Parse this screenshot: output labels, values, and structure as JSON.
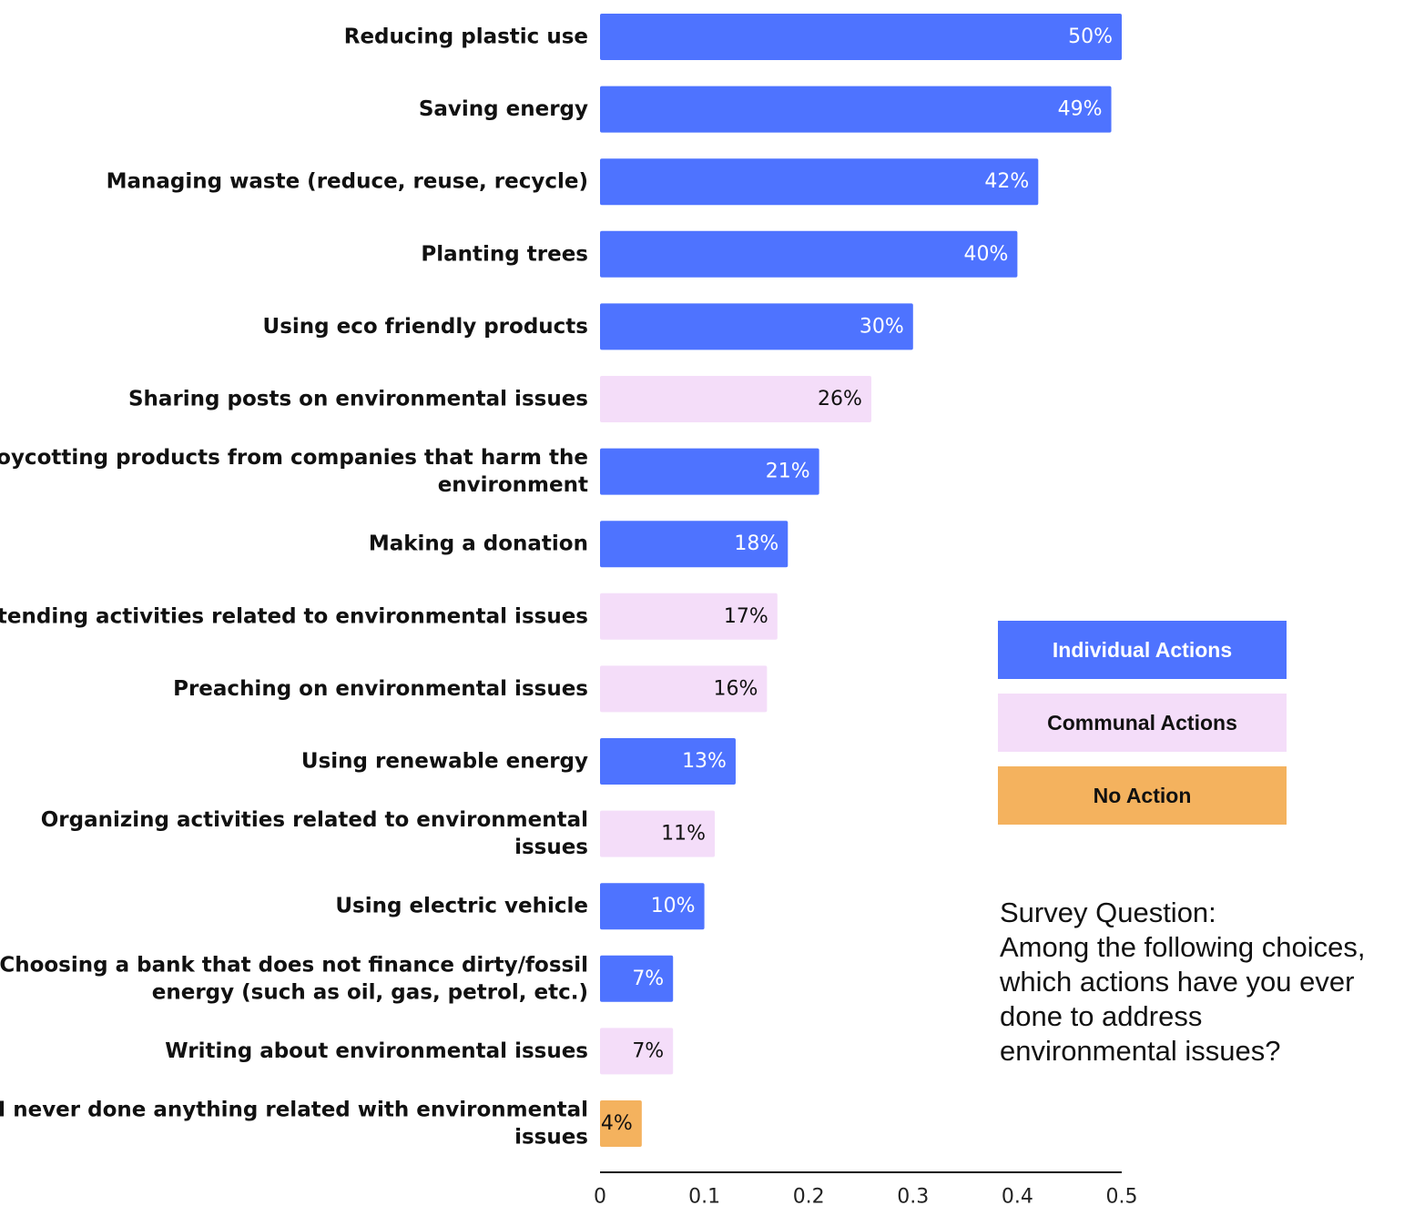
{
  "chart_data": {
    "type": "bar",
    "orientation": "horizontal",
    "categories": [
      [
        "Reducing plastic use"
      ],
      [
        "Saving energy"
      ],
      [
        "Managing waste (reduce, reuse, recycle)"
      ],
      [
        "Planting trees"
      ],
      [
        "Using eco friendly products"
      ],
      [
        "Sharing posts on environmental issues"
      ],
      [
        "Boycotting products from companies that harm the",
        "environment"
      ],
      [
        "Making a donation"
      ],
      [
        "Attending activities related to environmental issues"
      ],
      [
        "Preaching on environmental issues"
      ],
      [
        "Using renewable energy"
      ],
      [
        "Organizing activities related to environmental",
        "issues"
      ],
      [
        "Using electric vehicle"
      ],
      [
        "Choosing a bank that does not finance dirty/fossil",
        "energy (such as oil, gas, petrol, etc.)"
      ],
      [
        "Writing about environmental issues"
      ],
      [
        "I never done anything related with environmental",
        "issues"
      ]
    ],
    "values": [
      0.5,
      0.49,
      0.42,
      0.4,
      0.3,
      0.26,
      0.21,
      0.18,
      0.17,
      0.16,
      0.13,
      0.11,
      0.1,
      0.07,
      0.07,
      0.04
    ],
    "data_labels": [
      "50%",
      "49%",
      "42%",
      "40%",
      "30%",
      "26%",
      "21%",
      "18%",
      "17%",
      "16%",
      "13%",
      "11%",
      "10%",
      "7%",
      "7%",
      "4%"
    ],
    "groups": [
      "individual",
      "individual",
      "individual",
      "individual",
      "individual",
      "communal",
      "individual",
      "individual",
      "communal",
      "communal",
      "individual",
      "communal",
      "individual",
      "individual",
      "communal",
      "none"
    ],
    "xlim": [
      0,
      0.5
    ],
    "xticks": [
      0,
      0.1,
      0.2,
      0.3,
      0.4,
      0.5
    ],
    "xtick_labels": [
      "0",
      "0.1",
      "0.2",
      "0.3",
      "0.4",
      "0.5"
    ],
    "grid": false,
    "legend_position": "right",
    "legend": [
      {
        "key": "individual",
        "label": "Individual Actions"
      },
      {
        "key": "communal",
        "label": "Communal Actions"
      },
      {
        "key": "none",
        "label": "No Action"
      }
    ],
    "colors": {
      "individual": "#4E73FF",
      "communal": "#F4DDF9",
      "none": "#F4B25E",
      "individual_text": "#FFFFFF",
      "communal_text": "#111111",
      "none_text": "#111111",
      "axis": "#111111"
    }
  },
  "note": {
    "lines": [
      "Survey Question:",
      "Among the following choices,",
      "which actions have you ever",
      "done to address",
      "environmental issues?"
    ]
  }
}
